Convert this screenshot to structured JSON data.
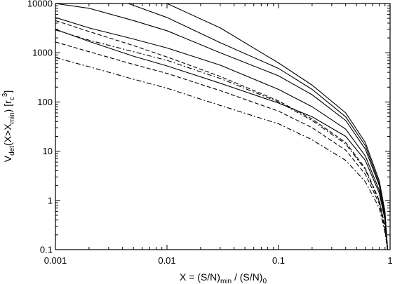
{
  "chart_data": {
    "type": "line",
    "x_scale": "log",
    "y_scale": "log",
    "xlim": [
      0.001,
      1
    ],
    "ylim": [
      0.1,
      10000
    ],
    "x_ticks": [
      "0.001",
      "0.01",
      "0.1",
      "1"
    ],
    "y_ticks": [
      "0.1",
      "1",
      "10",
      "100",
      "1000",
      "10000"
    ],
    "x_label_parts": [
      "X = (S/N)",
      "min",
      " / (S/N)",
      "0"
    ],
    "y_label_parts": [
      "V",
      "det",
      "(X>X",
      "min",
      ") [r",
      "c",
      "3",
      "]"
    ],
    "grid": false,
    "legend": "none",
    "series": [
      {
        "style": "solid",
        "x": [
          0.001,
          0.0015,
          0.003,
          0.01,
          0.03,
          0.1,
          0.2,
          0.4,
          0.6,
          0.8,
          0.9,
          0.95
        ],
        "y": [
          10000,
          10000,
          10000,
          10000,
          3200,
          620,
          220,
          60,
          15,
          2.5,
          0.6,
          0.1
        ]
      },
      {
        "style": "solid",
        "x": [
          0.001,
          0.003,
          0.0045,
          0.01,
          0.03,
          0.1,
          0.2,
          0.4,
          0.6,
          0.8,
          0.9,
          0.95
        ],
        "y": [
          10000,
          10000,
          10000,
          5200,
          1600,
          480,
          180,
          50,
          13,
          2.2,
          0.55,
          0.1
        ]
      },
      {
        "style": "solid",
        "x": [
          0.001,
          0.002,
          0.005,
          0.01,
          0.03,
          0.1,
          0.2,
          0.4,
          0.6,
          0.8,
          0.9,
          0.95
        ],
        "y": [
          10000,
          8000,
          4500,
          2800,
          1000,
          340,
          140,
          42,
          11,
          2.0,
          0.5,
          0.1
        ]
      },
      {
        "style": "solid",
        "x": [
          0.001,
          0.002,
          0.005,
          0.01,
          0.03,
          0.1,
          0.2,
          0.4,
          0.6,
          0.8,
          0.9,
          0.95
        ],
        "y": [
          5200,
          3200,
          1900,
          1250,
          560,
          180,
          80,
          28,
          8,
          1.6,
          0.45,
          0.1
        ]
      },
      {
        "style": "solid",
        "x": [
          0.001,
          0.002,
          0.005,
          0.01,
          0.03,
          0.1,
          0.2,
          0.4,
          0.6,
          0.8,
          0.9,
          0.95
        ],
        "y": [
          3000,
          1700,
          850,
          540,
          240,
          95,
          50,
          20,
          6.5,
          1.4,
          0.4,
          0.1
        ]
      },
      {
        "style": "dashed",
        "x": [
          0.001,
          0.002,
          0.005,
          0.01,
          0.03,
          0.1,
          0.2,
          0.4,
          0.6,
          0.8,
          0.9,
          0.95
        ],
        "y": [
          4500,
          2700,
          1400,
          820,
          330,
          105,
          45,
          15,
          4.5,
          1.0,
          0.3,
          0.1
        ]
      },
      {
        "style": "dashdot",
        "x": [
          0.001,
          0.002,
          0.005,
          0.01,
          0.03,
          0.1,
          0.2,
          0.4,
          0.6,
          0.8,
          0.9,
          0.95
        ],
        "y": [
          2900,
          1800,
          1050,
          700,
          300,
          100,
          42,
          14,
          4.2,
          0.95,
          0.28,
          0.1
        ]
      },
      {
        "style": "dashed",
        "x": [
          0.001,
          0.002,
          0.005,
          0.01,
          0.03,
          0.1,
          0.2,
          0.4,
          0.6,
          0.8,
          0.9,
          0.95
        ],
        "y": [
          1650,
          1050,
          580,
          380,
          170,
          65,
          30,
          10.5,
          3.4,
          0.85,
          0.26,
          0.1
        ]
      },
      {
        "style": "dashdot",
        "x": [
          0.001,
          0.002,
          0.005,
          0.01,
          0.03,
          0.1,
          0.2,
          0.4,
          0.6,
          0.8,
          0.9,
          0.95
        ],
        "y": [
          800,
          520,
          290,
          190,
          85,
          36,
          17,
          6.5,
          2.4,
          0.7,
          0.22,
          0.1
        ]
      }
    ]
  }
}
